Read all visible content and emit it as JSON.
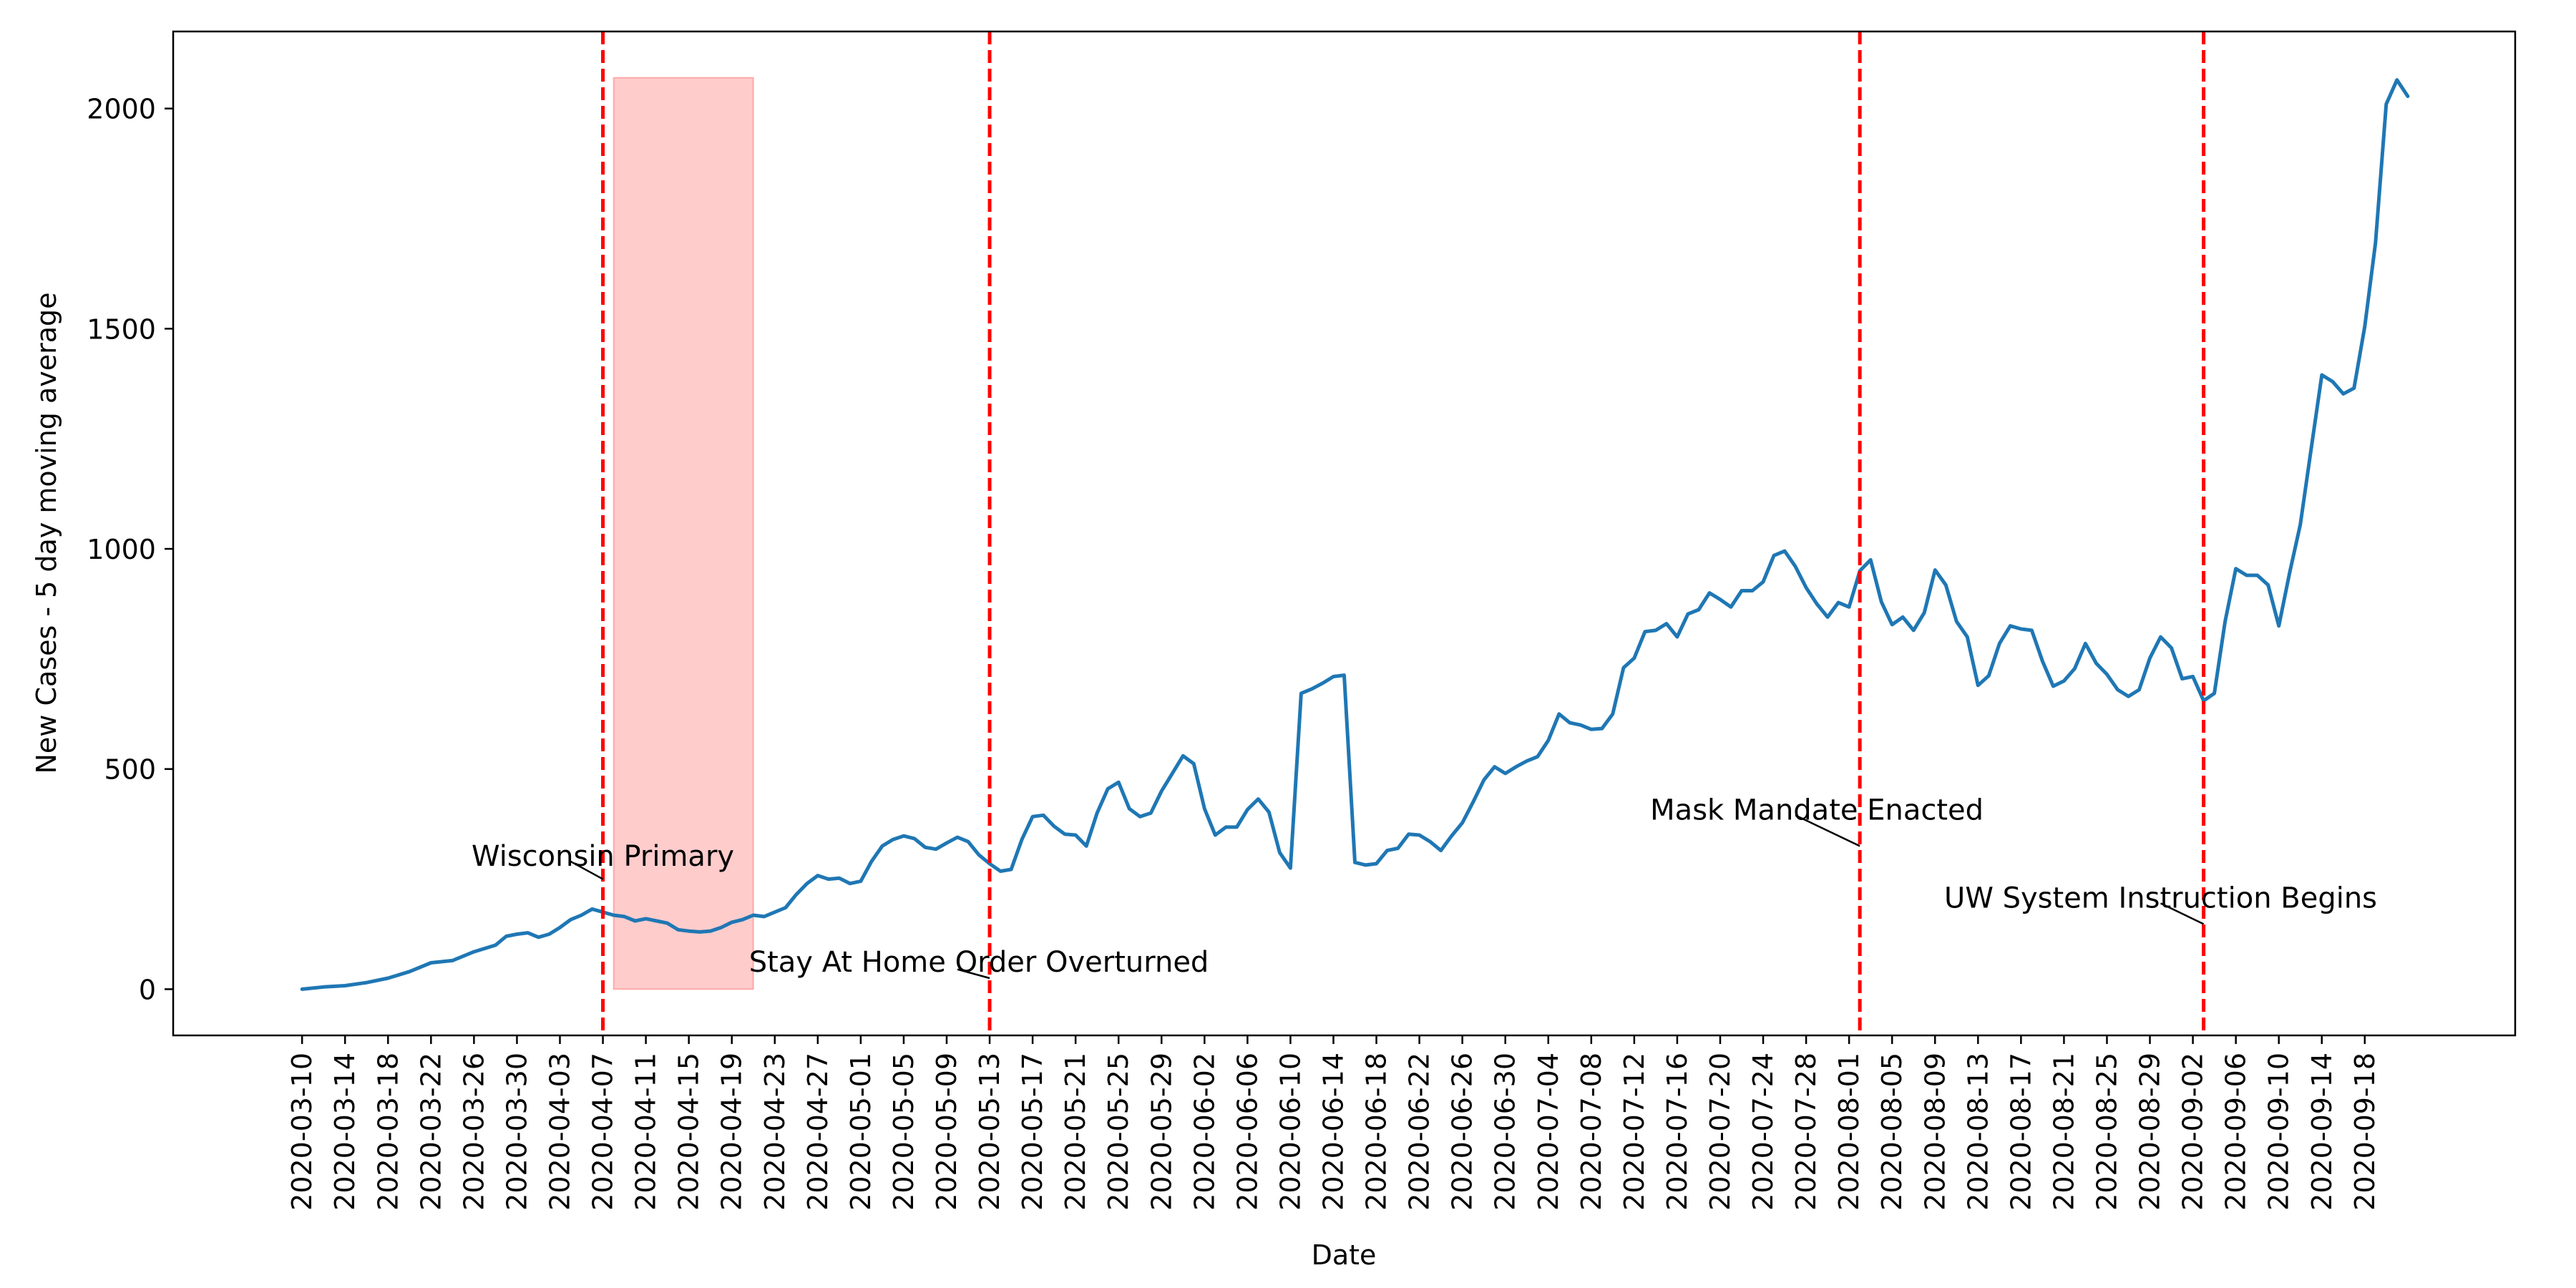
{
  "chart_data": {
    "type": "line",
    "xlabel": "Date",
    "ylabel": "New Cases - 5 day moving average",
    "xlim": [
      "2020-02-27",
      "2020-10-02"
    ],
    "ylim": [
      -105,
      2175
    ],
    "grid": false,
    "legend": null,
    "y_ticks": [
      0,
      500,
      1000,
      1500,
      2000
    ],
    "x_ticks": [
      "2020-03-10",
      "2020-03-14",
      "2020-03-18",
      "2020-03-22",
      "2020-03-26",
      "2020-03-30",
      "2020-04-03",
      "2020-04-07",
      "2020-04-11",
      "2020-04-15",
      "2020-04-19",
      "2020-04-23",
      "2020-04-27",
      "2020-05-01",
      "2020-05-05",
      "2020-05-09",
      "2020-05-13",
      "2020-05-17",
      "2020-05-21",
      "2020-05-25",
      "2020-05-29",
      "2020-06-02",
      "2020-06-06",
      "2020-06-10",
      "2020-06-14",
      "2020-06-18",
      "2020-06-22",
      "2020-06-26",
      "2020-06-30",
      "2020-07-04",
      "2020-07-08",
      "2020-07-12",
      "2020-07-16",
      "2020-07-20",
      "2020-07-24",
      "2020-07-28",
      "2020-08-01",
      "2020-08-05",
      "2020-08-09",
      "2020-08-13",
      "2020-08-17",
      "2020-08-21",
      "2020-08-25",
      "2020-08-29",
      "2020-09-02",
      "2020-09-06",
      "2020-09-10",
      "2020-09-14",
      "2020-09-18"
    ],
    "series": [
      {
        "color": "#1f77b4",
        "points": [
          [
            "2020-03-10",
            0
          ],
          [
            "2020-03-12",
            5
          ],
          [
            "2020-03-14",
            8
          ],
          [
            "2020-03-16",
            15
          ],
          [
            "2020-03-18",
            25
          ],
          [
            "2020-03-20",
            40
          ],
          [
            "2020-03-22",
            60
          ],
          [
            "2020-03-24",
            65
          ],
          [
            "2020-03-26",
            85
          ],
          [
            "2020-03-28",
            100
          ],
          [
            "2020-03-29",
            120
          ],
          [
            "2020-03-30",
            125
          ],
          [
            "2020-03-31",
            128
          ],
          [
            "2020-04-01",
            118
          ],
          [
            "2020-04-02",
            125
          ],
          [
            "2020-04-03",
            140
          ],
          [
            "2020-04-04",
            158
          ],
          [
            "2020-04-05",
            168
          ],
          [
            "2020-04-06",
            182
          ],
          [
            "2020-04-07",
            175
          ],
          [
            "2020-04-08",
            168
          ],
          [
            "2020-04-09",
            165
          ],
          [
            "2020-04-10",
            155
          ],
          [
            "2020-04-11",
            160
          ],
          [
            "2020-04-12",
            155
          ],
          [
            "2020-04-13",
            150
          ],
          [
            "2020-04-14",
            135
          ],
          [
            "2020-04-15",
            132
          ],
          [
            "2020-04-16",
            130
          ],
          [
            "2020-04-17",
            132
          ],
          [
            "2020-04-18",
            140
          ],
          [
            "2020-04-19",
            152
          ],
          [
            "2020-04-20",
            158
          ],
          [
            "2020-04-21",
            168
          ],
          [
            "2020-04-22",
            165
          ],
          [
            "2020-04-23",
            175
          ],
          [
            "2020-04-24",
            185
          ],
          [
            "2020-04-25",
            215
          ],
          [
            "2020-04-26",
            240
          ],
          [
            "2020-04-27",
            258
          ],
          [
            "2020-04-28",
            250
          ],
          [
            "2020-04-29",
            252
          ],
          [
            "2020-04-30",
            240
          ],
          [
            "2020-05-01",
            245
          ],
          [
            "2020-05-02",
            290
          ],
          [
            "2020-05-03",
            325
          ],
          [
            "2020-05-04",
            340
          ],
          [
            "2020-05-05",
            348
          ],
          [
            "2020-05-06",
            342
          ],
          [
            "2020-05-07",
            322
          ],
          [
            "2020-05-08",
            318
          ],
          [
            "2020-05-09",
            332
          ],
          [
            "2020-05-10",
            345
          ],
          [
            "2020-05-11",
            335
          ],
          [
            "2020-05-12",
            305
          ],
          [
            "2020-05-13",
            285
          ],
          [
            "2020-05-14",
            268
          ],
          [
            "2020-05-15",
            272
          ],
          [
            "2020-05-16",
            340
          ],
          [
            "2020-05-17",
            392
          ],
          [
            "2020-05-18",
            395
          ],
          [
            "2020-05-19",
            370
          ],
          [
            "2020-05-20",
            352
          ],
          [
            "2020-05-21",
            350
          ],
          [
            "2020-05-22",
            325
          ],
          [
            "2020-05-23",
            400
          ],
          [
            "2020-05-24",
            455
          ],
          [
            "2020-05-25",
            470
          ],
          [
            "2020-05-26",
            410
          ],
          [
            "2020-05-27",
            392
          ],
          [
            "2020-05-28",
            400
          ],
          [
            "2020-05-29",
            450
          ],
          [
            "2020-05-30",
            490
          ],
          [
            "2020-05-31",
            530
          ],
          [
            "2020-06-01",
            512
          ],
          [
            "2020-06-02",
            410
          ],
          [
            "2020-06-03",
            350
          ],
          [
            "2020-06-04",
            368
          ],
          [
            "2020-06-05",
            368
          ],
          [
            "2020-06-06",
            408
          ],
          [
            "2020-06-07",
            432
          ],
          [
            "2020-06-08",
            402
          ],
          [
            "2020-06-09",
            310
          ],
          [
            "2020-06-10",
            275
          ],
          [
            "2020-06-11",
            672
          ],
          [
            "2020-06-12",
            682
          ],
          [
            "2020-06-13",
            695
          ],
          [
            "2020-06-14",
            710
          ],
          [
            "2020-06-15",
            713
          ],
          [
            "2020-06-16",
            288
          ],
          [
            "2020-06-17",
            282
          ],
          [
            "2020-06-18",
            285
          ],
          [
            "2020-06-19",
            315
          ],
          [
            "2020-06-20",
            320
          ],
          [
            "2020-06-21",
            352
          ],
          [
            "2020-06-22",
            350
          ],
          [
            "2020-06-23",
            335
          ],
          [
            "2020-06-24",
            315
          ],
          [
            "2020-06-25",
            348
          ],
          [
            "2020-06-26",
            378
          ],
          [
            "2020-06-27",
            425
          ],
          [
            "2020-06-28",
            475
          ],
          [
            "2020-06-29",
            505
          ],
          [
            "2020-06-30",
            490
          ],
          [
            "2020-07-01",
            505
          ],
          [
            "2020-07-02",
            518
          ],
          [
            "2020-07-03",
            528
          ],
          [
            "2020-07-04",
            565
          ],
          [
            "2020-07-05",
            625
          ],
          [
            "2020-07-06",
            605
          ],
          [
            "2020-07-07",
            600
          ],
          [
            "2020-07-08",
            590
          ],
          [
            "2020-07-09",
            592
          ],
          [
            "2020-07-10",
            625
          ],
          [
            "2020-07-11",
            730
          ],
          [
            "2020-07-12",
            752
          ],
          [
            "2020-07-13",
            812
          ],
          [
            "2020-07-14",
            815
          ],
          [
            "2020-07-15",
            830
          ],
          [
            "2020-07-16",
            800
          ],
          [
            "2020-07-17",
            852
          ],
          [
            "2020-07-18",
            862
          ],
          [
            "2020-07-19",
            900
          ],
          [
            "2020-07-20",
            885
          ],
          [
            "2020-07-21",
            868
          ],
          [
            "2020-07-22",
            905
          ],
          [
            "2020-07-23",
            905
          ],
          [
            "2020-07-24",
            925
          ],
          [
            "2020-07-25",
            985
          ],
          [
            "2020-07-26",
            995
          ],
          [
            "2020-07-27",
            960
          ],
          [
            "2020-07-28",
            912
          ],
          [
            "2020-07-29",
            875
          ],
          [
            "2020-07-30",
            845
          ],
          [
            "2020-07-31",
            878
          ],
          [
            "2020-08-01",
            868
          ],
          [
            "2020-08-02",
            950
          ],
          [
            "2020-08-03",
            975
          ],
          [
            "2020-08-04",
            880
          ],
          [
            "2020-08-05",
            828
          ],
          [
            "2020-08-06",
            845
          ],
          [
            "2020-08-07",
            815
          ],
          [
            "2020-08-08",
            855
          ],
          [
            "2020-08-09",
            952
          ],
          [
            "2020-08-10",
            918
          ],
          [
            "2020-08-11",
            835
          ],
          [
            "2020-08-12",
            800
          ],
          [
            "2020-08-13",
            690
          ],
          [
            "2020-08-14",
            712
          ],
          [
            "2020-08-15",
            785
          ],
          [
            "2020-08-16",
            825
          ],
          [
            "2020-08-17",
            818
          ],
          [
            "2020-08-18",
            815
          ],
          [
            "2020-08-19",
            745
          ],
          [
            "2020-08-20",
            688
          ],
          [
            "2020-08-21",
            700
          ],
          [
            "2020-08-22",
            728
          ],
          [
            "2020-08-23",
            785
          ],
          [
            "2020-08-24",
            740
          ],
          [
            "2020-08-25",
            715
          ],
          [
            "2020-08-26",
            680
          ],
          [
            "2020-08-27",
            665
          ],
          [
            "2020-08-28",
            680
          ],
          [
            "2020-08-29",
            752
          ],
          [
            "2020-08-30",
            800
          ],
          [
            "2020-08-31",
            775
          ],
          [
            "2020-09-01",
            705
          ],
          [
            "2020-09-02",
            710
          ],
          [
            "2020-09-03",
            655
          ],
          [
            "2020-09-04",
            672
          ],
          [
            "2020-09-05",
            835
          ],
          [
            "2020-09-06",
            955
          ],
          [
            "2020-09-07",
            940
          ],
          [
            "2020-09-08",
            940
          ],
          [
            "2020-09-09",
            918
          ],
          [
            "2020-09-10",
            825
          ],
          [
            "2020-09-11",
            945
          ],
          [
            "2020-09-12",
            1055
          ],
          [
            "2020-09-13",
            1225
          ],
          [
            "2020-09-14",
            1395
          ],
          [
            "2020-09-15",
            1380
          ],
          [
            "2020-09-16",
            1352
          ],
          [
            "2020-09-17",
            1365
          ],
          [
            "2020-09-18",
            1505
          ],
          [
            "2020-09-19",
            1695
          ],
          [
            "2020-09-20",
            2010
          ],
          [
            "2020-09-21",
            2065
          ],
          [
            "2020-09-22",
            2028
          ]
        ]
      }
    ],
    "shaded_region": {
      "x_start": "2020-04-08",
      "x_end": "2020-04-21",
      "y_top": 2070,
      "color": "#ff0000",
      "opacity": 0.2
    },
    "vlines": [
      {
        "x": "2020-04-07",
        "color": "#ff0000",
        "style": "dashed"
      },
      {
        "x": "2020-05-13",
        "color": "#ff0000",
        "style": "dashed"
      },
      {
        "x": "2020-08-02",
        "color": "#ff0000",
        "style": "dashed"
      },
      {
        "x": "2020-09-03",
        "color": "#ff0000",
        "style": "dashed"
      }
    ],
    "annotations": [
      {
        "text": "Wisconsin Primary",
        "text_x": "2020-04-07",
        "text_y": 280,
        "arrow_to_x": "2020-04-07",
        "arrow_to_y": 250,
        "arrow_from_x": "2020-04-04",
        "arrow_from_y": 290
      },
      {
        "text": "Stay At Home Order Overturned",
        "text_x": "2020-05-12",
        "text_y": 40,
        "arrow_to_x": "2020-05-13",
        "arrow_to_y": 25,
        "arrow_from_x": "2020-05-10",
        "arrow_from_y": 45
      },
      {
        "text": "Mask Mandate Enacted",
        "text_x": "2020-07-29",
        "text_y": 385,
        "arrow_to_x": "2020-08-02",
        "arrow_to_y": 325,
        "arrow_from_x": "2020-07-27",
        "arrow_from_y": 395
      },
      {
        "text": "UW System Instruction Begins",
        "text_x": "2020-08-30",
        "text_y": 185,
        "arrow_to_x": "2020-09-03",
        "arrow_to_y": 148,
        "arrow_from_x": "2020-08-30",
        "arrow_from_y": 195
      }
    ]
  }
}
